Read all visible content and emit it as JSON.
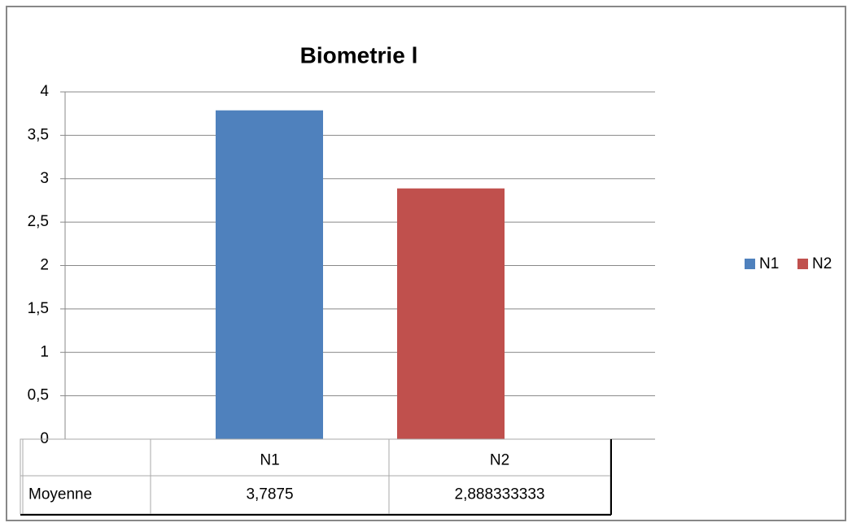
{
  "chart_data": {
    "type": "bar",
    "title": "Biometrie l",
    "categories": [
      "Moyenne"
    ],
    "series": [
      {
        "name": "N1",
        "color": "#4f81bd",
        "values": [
          3.7875
        ],
        "value_labels": [
          "3,7875"
        ]
      },
      {
        "name": "N2",
        "color": "#c0504d",
        "values": [
          2.888333333
        ],
        "value_labels": [
          "2,888333333"
        ]
      }
    ],
    "ylim": [
      0,
      4
    ],
    "yticks": [
      0,
      {
        "value": 0.5,
        "label": "0,5"
      },
      1,
      {
        "value": 1.5,
        "label": "1,5"
      },
      2,
      {
        "value": 2.5,
        "label": "2,5"
      },
      3,
      {
        "value": 3.5,
        "label": "3,5"
      },
      4
    ],
    "grid": true,
    "legend": "right"
  }
}
